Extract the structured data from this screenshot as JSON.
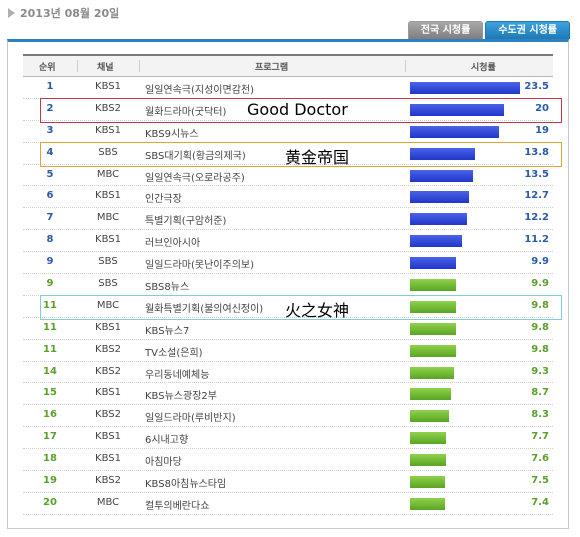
{
  "date": "2013년 08월 20일",
  "tabs": {
    "national": "전국 시청률",
    "capital": "수도권 시청률"
  },
  "columns": {
    "rank": "순위",
    "channel": "채널",
    "program": "프로그램",
    "rating": "시청률"
  },
  "annotations": [
    {
      "label": "Good Doctor",
      "row": 1,
      "color": "#c0394a"
    },
    {
      "label": "黄金帝国",
      "row": 3,
      "color": "#e0a23a"
    },
    {
      "label": "火之女神",
      "row": 10,
      "color": "#7fcfd4"
    }
  ],
  "colors": {
    "top_bars": "#2b3fd6",
    "other_bars": "#6cba34",
    "rank_blue": "#2a5aa8",
    "rank_green": "#5aa02c"
  },
  "chart_data": {
    "type": "bar",
    "orientation": "horizontal",
    "xlim": [
      0,
      25
    ],
    "rows": [
      {
        "rank": "1",
        "channel": "KBS1",
        "program": "일일연속극(지성이면감천)",
        "value": 23.5,
        "group": "blue"
      },
      {
        "rank": "2",
        "channel": "KBS2",
        "program": "월화드라마(굿닥터)",
        "value": 20,
        "group": "blue"
      },
      {
        "rank": "3",
        "channel": "KBS1",
        "program": "KBS9시뉴스",
        "value": 19,
        "group": "blue"
      },
      {
        "rank": "4",
        "channel": "SBS",
        "program": "SBS대기획(황금의제국)",
        "value": 13.8,
        "group": "blue"
      },
      {
        "rank": "5",
        "channel": "MBC",
        "program": "일일연속극(오로라공주)",
        "value": 13.5,
        "group": "blue"
      },
      {
        "rank": "6",
        "channel": "KBS1",
        "program": "인간극장",
        "value": 12.7,
        "group": "blue"
      },
      {
        "rank": "7",
        "channel": "MBC",
        "program": "특별기획(구암허준)",
        "value": 12.2,
        "group": "blue"
      },
      {
        "rank": "8",
        "channel": "KBS1",
        "program": "러브인아시아",
        "value": 11.2,
        "group": "blue"
      },
      {
        "rank": "9",
        "channel": "SBS",
        "program": "일일드라마(못난이주의보)",
        "value": 9.9,
        "group": "blue"
      },
      {
        "rank": "9",
        "channel": "SBS",
        "program": "SBS8뉴스",
        "value": 9.9,
        "group": "green"
      },
      {
        "rank": "11",
        "channel": "MBC",
        "program": "월화특별기획(불의여신정이)",
        "value": 9.8,
        "group": "green"
      },
      {
        "rank": "11",
        "channel": "KBS1",
        "program": "KBS뉴스7",
        "value": 9.8,
        "group": "green"
      },
      {
        "rank": "11",
        "channel": "KBS2",
        "program": "TV소설(은희)",
        "value": 9.8,
        "group": "green"
      },
      {
        "rank": "14",
        "channel": "KBS2",
        "program": "우리동네예체능",
        "value": 9.3,
        "group": "green"
      },
      {
        "rank": "15",
        "channel": "KBS1",
        "program": "KBS뉴스광장2부",
        "value": 8.7,
        "group": "green"
      },
      {
        "rank": "16",
        "channel": "KBS2",
        "program": "일일드라마(루비반지)",
        "value": 8.3,
        "group": "green"
      },
      {
        "rank": "17",
        "channel": "KBS1",
        "program": "6시내고향",
        "value": 7.7,
        "group": "green"
      },
      {
        "rank": "18",
        "channel": "KBS1",
        "program": "아침마당",
        "value": 7.6,
        "group": "green"
      },
      {
        "rank": "19",
        "channel": "KBS2",
        "program": "KBS8아침뉴스타임",
        "value": 7.5,
        "group": "green"
      },
      {
        "rank": "20",
        "channel": "MBC",
        "program": "컬투의베란다쇼",
        "value": 7.4,
        "group": "green"
      }
    ]
  }
}
